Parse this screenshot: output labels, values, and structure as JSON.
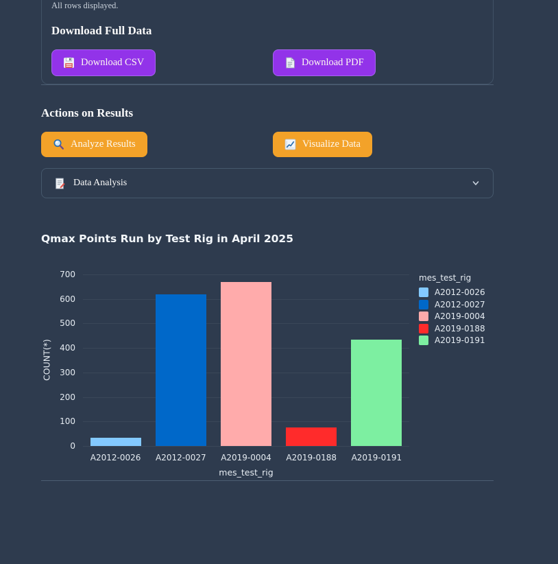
{
  "page": {
    "status_text": "All rows displayed.",
    "download_section": {
      "heading": "Download Full Data",
      "csv_button_label": "Download CSV",
      "csv_icon": "floppy-disk-icon",
      "pdf_button_label": "Download PDF",
      "pdf_icon": "page-document-icon"
    },
    "actions_section": {
      "heading": "Actions on Results",
      "analyze_button_label": "Analyze Results",
      "analyze_icon": "magnifying-glass-icon",
      "visualize_button_label": "Visualize Data",
      "visualize_icon": "chart-increasing-icon"
    },
    "expander": {
      "label": "Data Analysis",
      "icon": "memo-icon",
      "chevron_icon": "chevron-down-icon"
    }
  },
  "colors": {
    "background": "#2e3b4e",
    "card_border": "#415266",
    "divider": "#4d5e73",
    "purple_button": "#9233e9",
    "orange_button": "#f3a229",
    "gridline": "#3a4759",
    "text": "#fafafa"
  },
  "chart_data": {
    "type": "bar",
    "title": "Qmax Points Run by Test Rig in April 2025",
    "categories": [
      "A2012-0026",
      "A2012-0027",
      "A2019-0004",
      "A2019-0188",
      "A2019-0191"
    ],
    "values": [
      35,
      620,
      670,
      75,
      435
    ],
    "bar_colors": [
      "#83c9ff",
      "#0068c9",
      "#ffabab",
      "#ff2b2b",
      "#7defa1"
    ],
    "xlabel": "mes_test_rig",
    "ylabel": "COUNT(*)",
    "ylim": [
      0,
      700
    ],
    "ytick_step": 100,
    "grid": true,
    "legend_title": "mes_test_rig",
    "legend_position": "right",
    "legend_entries": [
      "A2012-0026",
      "A2012-0027",
      "A2019-0004",
      "A2019-0188",
      "A2019-0191"
    ]
  }
}
